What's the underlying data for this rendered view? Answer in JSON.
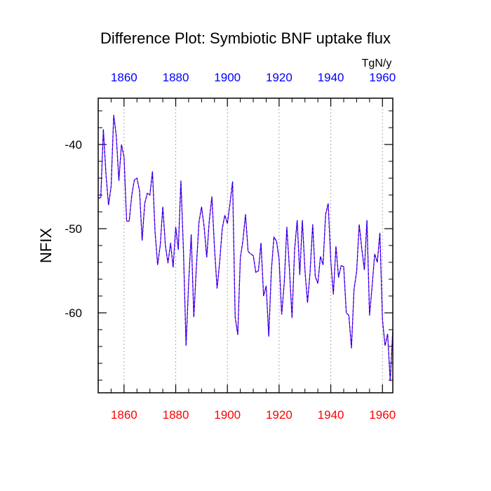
{
  "chart_data": {
    "type": "line",
    "title": "Difference Plot: Symbiotic BNF uptake flux",
    "units": "TgN/y",
    "ylabel": "NFIX",
    "xlabel": "",
    "xlim": [
      1850,
      1964
    ],
    "ylim": [
      -69.5,
      -34.5
    ],
    "x_ticks": [
      1860,
      1880,
      1900,
      1920,
      1940,
      1960
    ],
    "y_ticks": [
      -40,
      -50,
      -60
    ],
    "y_tick_labels": [
      "-40",
      "-50",
      "-60"
    ],
    "x_tick_labels": [
      "1860",
      "1880",
      "1900",
      "1920",
      "1940",
      "1960"
    ],
    "grid": "vertical dotted at major x ticks",
    "series": [
      {
        "color": "#8800cc",
        "dash_color": "#0000ff",
        "x": [
          1850,
          1851,
          1852,
          1853,
          1854,
          1855,
          1856,
          1857,
          1858,
          1859,
          1860,
          1861,
          1862,
          1863,
          1864,
          1865,
          1866,
          1867,
          1868,
          1869,
          1870,
          1871,
          1872,
          1873,
          1874,
          1875,
          1876,
          1877,
          1878,
          1879,
          1880,
          1881,
          1882,
          1883,
          1884,
          1885,
          1886,
          1887,
          1888,
          1889,
          1890,
          1891,
          1892,
          1893,
          1894,
          1895,
          1896,
          1897,
          1898,
          1899,
          1900,
          1901,
          1902,
          1903,
          1904,
          1905,
          1906,
          1907,
          1908,
          1909,
          1910,
          1911,
          1912,
          1913,
          1914,
          1915,
          1916,
          1917,
          1918,
          1919,
          1920,
          1921,
          1922,
          1923,
          1924,
          1925,
          1926,
          1927,
          1928,
          1929,
          1930,
          1931,
          1932,
          1933,
          1934,
          1935,
          1936,
          1937,
          1938,
          1939,
          1940,
          1941,
          1942,
          1943,
          1944,
          1945,
          1946,
          1947,
          1948,
          1949,
          1950,
          1951,
          1952,
          1953,
          1954,
          1955,
          1956,
          1957,
          1958,
          1959,
          1960,
          1961,
          1962,
          1963,
          1964
        ],
        "values": [
          -46.4,
          -46.3,
          -38.2,
          -43.5,
          -47.2,
          -45.0,
          -36.5,
          -39.0,
          -44.3,
          -40.0,
          -41.5,
          -49.1,
          -49.1,
          -46.0,
          -44.2,
          -44.0,
          -45.5,
          -51.4,
          -47.0,
          -45.8,
          -46.0,
          -43.2,
          -50.4,
          -54.3,
          -52.0,
          -47.4,
          -52.0,
          -54.1,
          -51.7,
          -54.6,
          -49.8,
          -52.5,
          -44.3,
          -52.7,
          -63.9,
          -56.4,
          -50.7,
          -60.5,
          -54.5,
          -49.2,
          -47.4,
          -49.8,
          -53.4,
          -49.0,
          -46.2,
          -52.3,
          -57.1,
          -54.0,
          -50.0,
          -48.4,
          -49.4,
          -47.0,
          -44.4,
          -60.5,
          -62.6,
          -53.5,
          -51.4,
          -48.3,
          -52.7,
          -53.0,
          -53.2,
          -55.2,
          -55.0,
          -51.7,
          -58.0,
          -56.8,
          -62.8,
          -55.0,
          -51.0,
          -51.5,
          -53.6,
          -60.2,
          -56.4,
          -49.8,
          -54.8,
          -60.6,
          -52.5,
          -49.0,
          -55.5,
          -49.0,
          -54.9,
          -58.8,
          -55.1,
          -49.5,
          -55.7,
          -56.5,
          -53.3,
          -54.3,
          -48.3,
          -47.0,
          -53.8,
          -57.8,
          -52.1,
          -55.8,
          -54.4,
          -54.5,
          -60.0,
          -60.3,
          -64.2,
          -57.2,
          -55.1,
          -49.5,
          -52.4,
          -54.9,
          -49.0,
          -60.3,
          -56.8,
          -53.0,
          -54.0,
          -50.5,
          -60.8,
          -63.9,
          -62.5,
          -68.1,
          -62.0
        ]
      }
    ]
  }
}
